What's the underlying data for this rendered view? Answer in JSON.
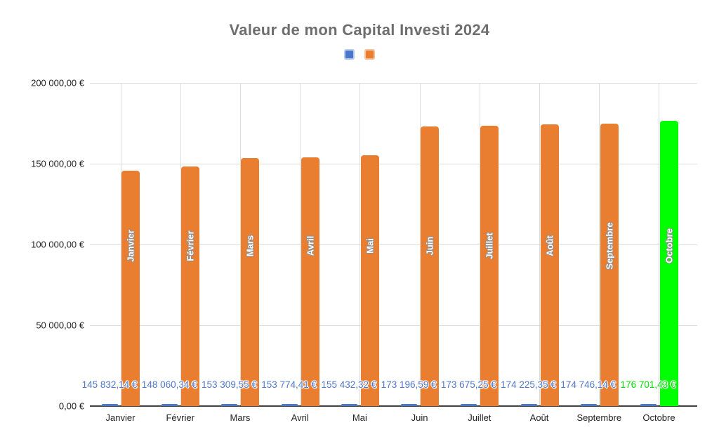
{
  "chart_data": {
    "type": "bar",
    "title": "Valeur de mon Capital Investi 2024",
    "categories": [
      "Janvier",
      "Février",
      "Mars",
      "Avril",
      "Mai",
      "Juin",
      "Juillet",
      "Août",
      "Septembre",
      "Octobre"
    ],
    "series": [
      {
        "name": "",
        "color": "#4A77C9",
        "halo": "#BACCEC",
        "estimated": true,
        "values": [
          1200,
          1200,
          1200,
          1200,
          1200,
          1200,
          1200,
          1200,
          1200,
          1200
        ]
      },
      {
        "name": "",
        "color": "#EA7E30",
        "halo": "#F6C29B",
        "values": [
          145832.14,
          148060.34,
          153309.55,
          153774.41,
          155432.32,
          173196.59,
          173675.25,
          174225.35,
          174746.14,
          176701.43
        ],
        "labels": [
          "145 832,14 €",
          "148 060,34 €",
          "153 309,55 €",
          "153 774,41 €",
          "155 432,32 €",
          "173 196,59 €",
          "173 675,25 €",
          "174 225,35 €",
          "174 746,14 €",
          "176 701,43 €"
        ],
        "label_color": "#5077C8",
        "highlight": {
          "index": 9,
          "bar_color": "#00FF00",
          "label_color": "#00DF00"
        }
      }
    ],
    "ylim": [
      0,
      200000
    ],
    "y_ticks": [
      {
        "label": "0,00 €",
        "value": 0
      },
      {
        "label": "50 000,00 €",
        "value": 50000
      },
      {
        "label": "100 000,00 €",
        "value": 100000
      },
      {
        "label": "150 000,00 €",
        "value": 150000
      },
      {
        "label": "200 000,00 €",
        "value": 200000
      }
    ],
    "grid": true,
    "legend_position": "top-center",
    "colors": {
      "gridline": "#DCDCDC",
      "baseline": "#424242",
      "title_text": "#6E6E6E",
      "axis_text": "#222222"
    }
  }
}
